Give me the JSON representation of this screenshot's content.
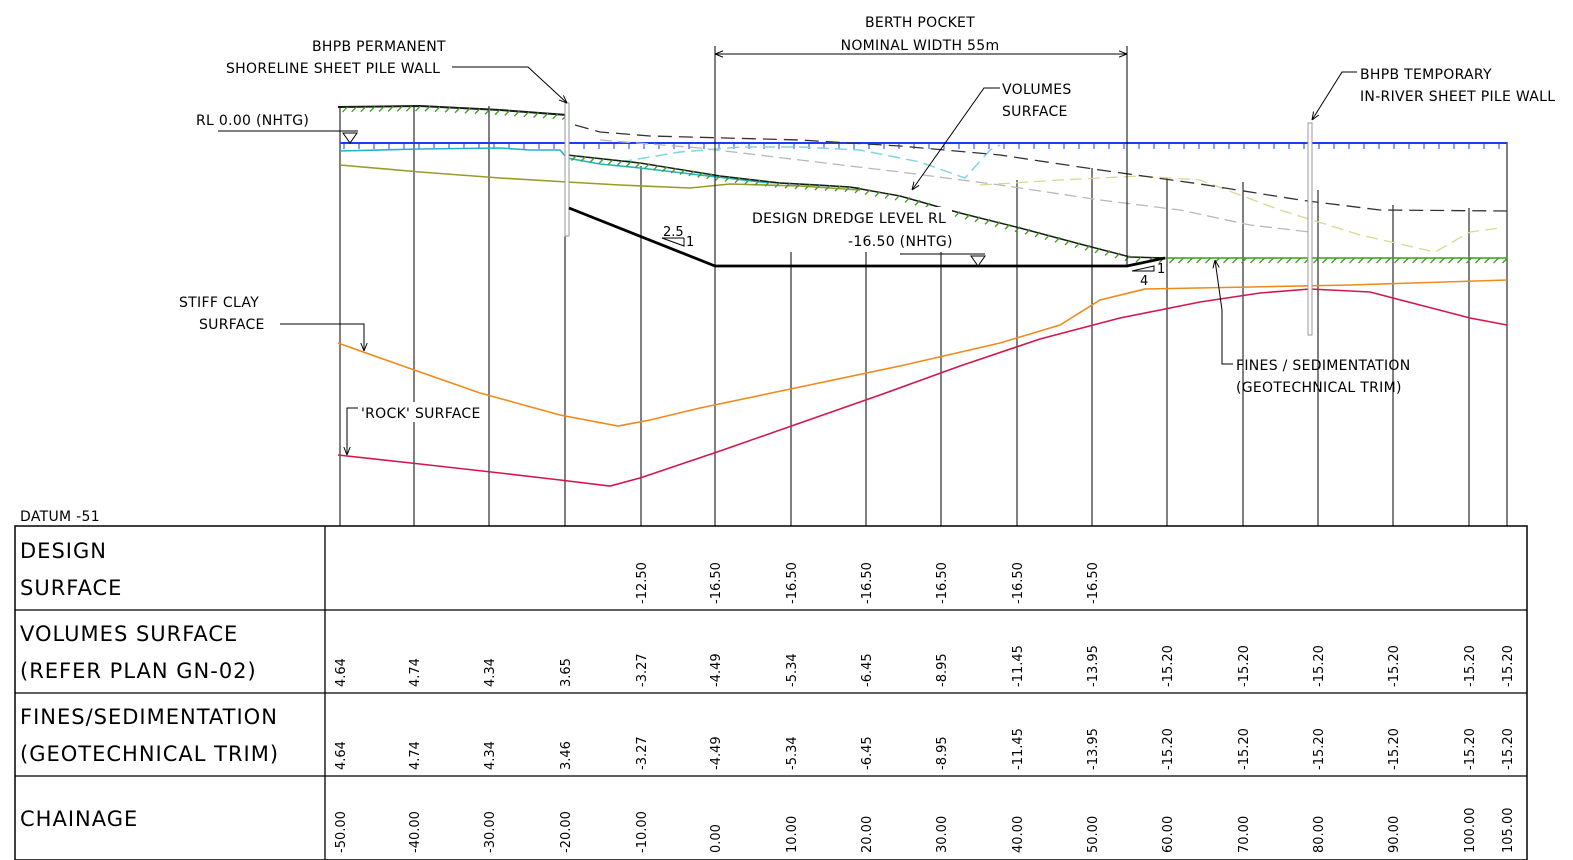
{
  "labels": {
    "permanent_wall_1": "BHPB PERMANENT",
    "permanent_wall_2": "SHORELINE SHEET PILE WALL",
    "rl_zero": "RL 0.00 (NHTG)",
    "berth_1": "BERTH POCKET",
    "berth_2": "NOMINAL WIDTH 55m",
    "volumes_1": "VOLUMES",
    "volumes_2": "SURFACE",
    "temp_wall_1": "BHPB TEMPORARY",
    "temp_wall_2": "IN-RIVER SHEET PILE WALL",
    "dredge_1": "DESIGN DREDGE LEVEL RL",
    "dredge_2": "-16.50 (NHTG)",
    "stiff_clay_1": "STIFF CLAY",
    "stiff_clay_2": "SURFACE",
    "rock": "'ROCK' SURFACE",
    "fines_1": "FINES / SEDIMENTATION",
    "fines_2": "(GEOTECHNICAL TRIM)",
    "slope_left_run": "2.5",
    "slope_left_rise": "1",
    "slope_right_run": "4",
    "slope_right_rise": "1",
    "datum": "DATUM -51"
  },
  "table": {
    "rows": [
      {
        "title_1": "DESIGN",
        "title_2": "SURFACE"
      },
      {
        "title_1": "VOLUMES SURFACE",
        "title_2": "(REFER PLAN GN-02)"
      },
      {
        "title_1": "FINES/SEDIMENTATION",
        "title_2": "(GEOTECHNICAL TRIM)"
      },
      {
        "title_1": "CHAINAGE",
        "title_2": ""
      }
    ],
    "design_surface": [
      "",
      "",
      "",
      "",
      "-12.50",
      "-16.50",
      "-16.50",
      "-16.50",
      "-16.50",
      "-16.50",
      "-16.50",
      "",
      "",
      "",
      "",
      "",
      ""
    ],
    "volumes_surface": [
      "4.64",
      "4.74",
      "4.34",
      "3.65",
      "-3.27",
      "-4.49",
      "-5.34",
      "-6.45",
      "-8.95",
      "-11.45",
      "-13.95",
      "-15.20",
      "-15.20",
      "-15.20",
      "-15.20",
      "-15.20",
      "-15.20"
    ],
    "fines_sedimentation": [
      "4.64",
      "4.74",
      "4.34",
      "3.46",
      "-3.27",
      "-4.49",
      "-5.34",
      "-6.45",
      "-8.95",
      "-11.45",
      "-13.95",
      "-15.20",
      "-15.20",
      "-15.20",
      "-15.20",
      "-15.20",
      "-15.20"
    ],
    "chainage": [
      "-50.00",
      "-40.00",
      "-30.00",
      "-20.00",
      "-10.00",
      "0.00",
      "10.00",
      "20.00",
      "30.00",
      "40.00",
      "50.00",
      "60.00",
      "70.00",
      "80.00",
      "90.00",
      "100.00",
      "105.00"
    ]
  },
  "colors": {
    "water_line": "#1a3cff",
    "cyan_surface": "#22b3c8",
    "cyan_dashed": "#7fd6e6",
    "olive_surface": "#9a9a2a",
    "green_hatch": "#3aa01a",
    "stiff_clay": "#f08a1c",
    "rock": "#d4164a",
    "grey_dashed": "#b8b8b8",
    "yellow_dashed": "#d8d890",
    "dark_dashed": "#333333",
    "design_line": "#000000"
  }
}
